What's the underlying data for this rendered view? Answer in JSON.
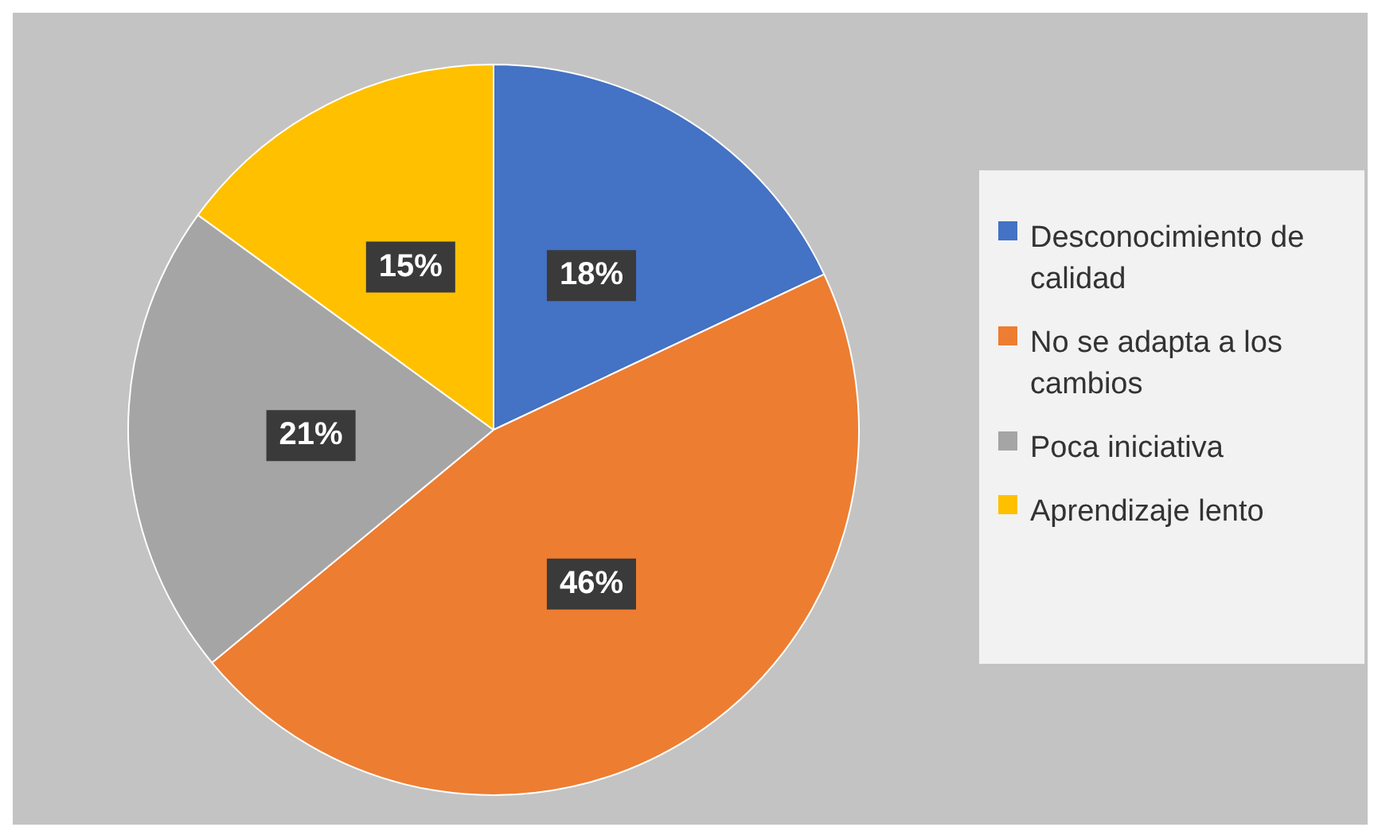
{
  "chart_data": {
    "type": "pie",
    "categories": [
      "Desconocimiento de calidad",
      "No se adapta a los cambios",
      "Poca iniciativa",
      "Aprendizaje lento"
    ],
    "values": [
      18,
      46,
      21,
      15
    ],
    "colors": [
      "#4472c4",
      "#ed7d31",
      "#a5a5a5",
      "#ffc000"
    ],
    "value_labels": [
      "18%",
      "46%",
      "21%",
      "15%"
    ],
    "legend": "right"
  }
}
